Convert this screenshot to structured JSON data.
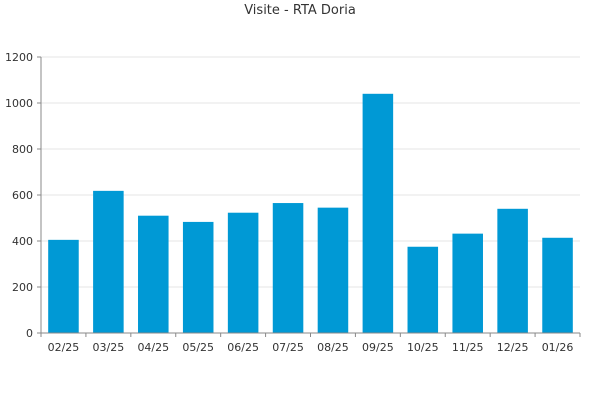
{
  "chart_data": {
    "type": "bar",
    "title": "Visite - RTA Doria",
    "xlabel": "",
    "ylabel": "",
    "categories": [
      "02/25",
      "03/25",
      "04/25",
      "05/25",
      "06/25",
      "07/25",
      "08/25",
      "09/25",
      "10/25",
      "11/25",
      "12/25",
      "01/26"
    ],
    "values": [
      405,
      618,
      510,
      483,
      523,
      565,
      545,
      1040,
      375,
      432,
      540,
      414
    ],
    "ylim": [
      0,
      1200
    ],
    "yticks": [
      "0",
      "200",
      "400",
      "600",
      "800",
      "1000",
      "1200"
    ],
    "grid": true,
    "legend": "none",
    "bar_color": "#0099d5",
    "grid_color": "#e6e6e6",
    "axis_color": "#888888"
  }
}
